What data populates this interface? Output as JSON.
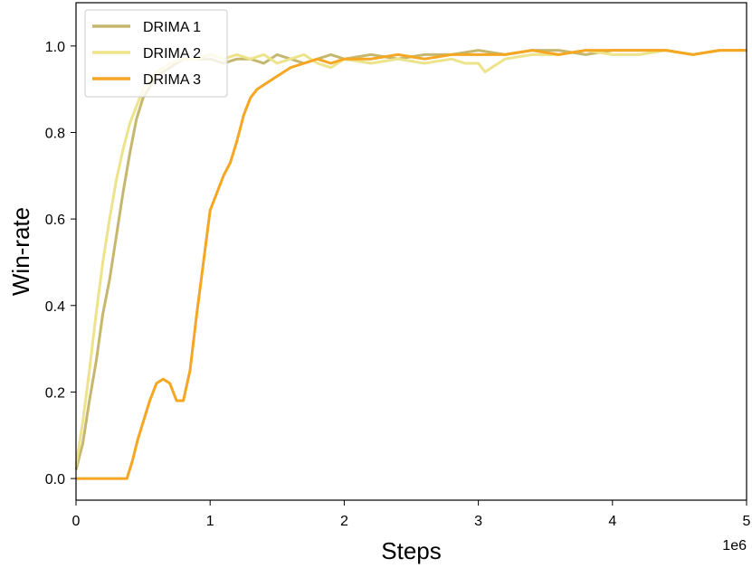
{
  "chart_data": {
    "type": "line",
    "xlabel": "Steps",
    "ylabel": "Win-rate",
    "x_offset_label": "1e6",
    "xlim": [
      0,
      5
    ],
    "ylim": [
      -0.05,
      1.1
    ],
    "x_ticks": [
      "0",
      "1",
      "2",
      "3",
      "4",
      "5"
    ],
    "y_ticks": [
      "0.0",
      "0.2",
      "0.4",
      "0.6",
      "0.8",
      "1.0"
    ],
    "grid": false,
    "legend_position": "top-left",
    "series": [
      {
        "name": "DRIMA 1",
        "color": "#c5b86e",
        "x": [
          0,
          0.05,
          0.1,
          0.15,
          0.2,
          0.25,
          0.3,
          0.35,
          0.4,
          0.45,
          0.5,
          0.6,
          0.7,
          0.8,
          0.9,
          1.0,
          1.1,
          1.2,
          1.3,
          1.4,
          1.5,
          1.6,
          1.7,
          1.8,
          1.9,
          2.0,
          2.2,
          2.4,
          2.6,
          2.8,
          3.0,
          3.2,
          3.4,
          3.6,
          3.8,
          4.0,
          4.2,
          4.4,
          4.6,
          4.8,
          5.0
        ],
        "y": [
          0.02,
          0.08,
          0.18,
          0.27,
          0.38,
          0.46,
          0.56,
          0.66,
          0.75,
          0.83,
          0.88,
          0.93,
          0.95,
          0.97,
          0.97,
          0.97,
          0.96,
          0.97,
          0.97,
          0.96,
          0.98,
          0.97,
          0.96,
          0.97,
          0.98,
          0.97,
          0.98,
          0.97,
          0.98,
          0.98,
          0.99,
          0.98,
          0.99,
          0.99,
          0.98,
          0.99,
          0.99,
          0.99,
          0.98,
          0.99,
          0.99
        ]
      },
      {
        "name": "DRIMA 2",
        "color": "#ede38a",
        "x": [
          0,
          0.05,
          0.1,
          0.15,
          0.2,
          0.25,
          0.3,
          0.35,
          0.4,
          0.45,
          0.5,
          0.6,
          0.7,
          0.8,
          0.9,
          1.0,
          1.1,
          1.2,
          1.3,
          1.4,
          1.5,
          1.6,
          1.7,
          1.8,
          1.9,
          2.0,
          2.2,
          2.4,
          2.6,
          2.8,
          2.9,
          3.0,
          3.05,
          3.1,
          3.2,
          3.4,
          3.6,
          3.8,
          4.0,
          4.2,
          4.4,
          4.6,
          4.8,
          5.0
        ],
        "y": [
          0.03,
          0.13,
          0.25,
          0.38,
          0.5,
          0.6,
          0.69,
          0.76,
          0.82,
          0.86,
          0.9,
          0.94,
          0.96,
          0.97,
          0.97,
          0.98,
          0.97,
          0.98,
          0.97,
          0.98,
          0.96,
          0.97,
          0.98,
          0.96,
          0.95,
          0.97,
          0.96,
          0.97,
          0.96,
          0.97,
          0.96,
          0.96,
          0.94,
          0.95,
          0.97,
          0.98,
          0.98,
          0.99,
          0.98,
          0.98,
          0.99,
          0.98,
          0.99,
          0.99
        ]
      },
      {
        "name": "DRIMA 3",
        "color": "#f5a623",
        "x": [
          0,
          0.1,
          0.2,
          0.3,
          0.38,
          0.42,
          0.46,
          0.5,
          0.55,
          0.6,
          0.65,
          0.7,
          0.75,
          0.8,
          0.85,
          0.9,
          0.95,
          1.0,
          1.05,
          1.1,
          1.15,
          1.2,
          1.25,
          1.3,
          1.35,
          1.4,
          1.5,
          1.6,
          1.7,
          1.8,
          1.9,
          2.0,
          2.2,
          2.4,
          2.6,
          2.8,
          3.0,
          3.2,
          3.4,
          3.6,
          3.8,
          4.0,
          4.2,
          4.4,
          4.6,
          4.8,
          5.0
        ],
        "y": [
          0.0,
          0.0,
          0.0,
          0.0,
          0.0,
          0.04,
          0.09,
          0.13,
          0.18,
          0.22,
          0.23,
          0.22,
          0.18,
          0.18,
          0.25,
          0.38,
          0.5,
          0.62,
          0.66,
          0.7,
          0.73,
          0.78,
          0.84,
          0.88,
          0.9,
          0.91,
          0.93,
          0.95,
          0.96,
          0.97,
          0.96,
          0.97,
          0.97,
          0.98,
          0.97,
          0.98,
          0.98,
          0.98,
          0.99,
          0.98,
          0.99,
          0.99,
          0.99,
          0.99,
          0.98,
          0.99,
          0.99
        ]
      }
    ]
  }
}
